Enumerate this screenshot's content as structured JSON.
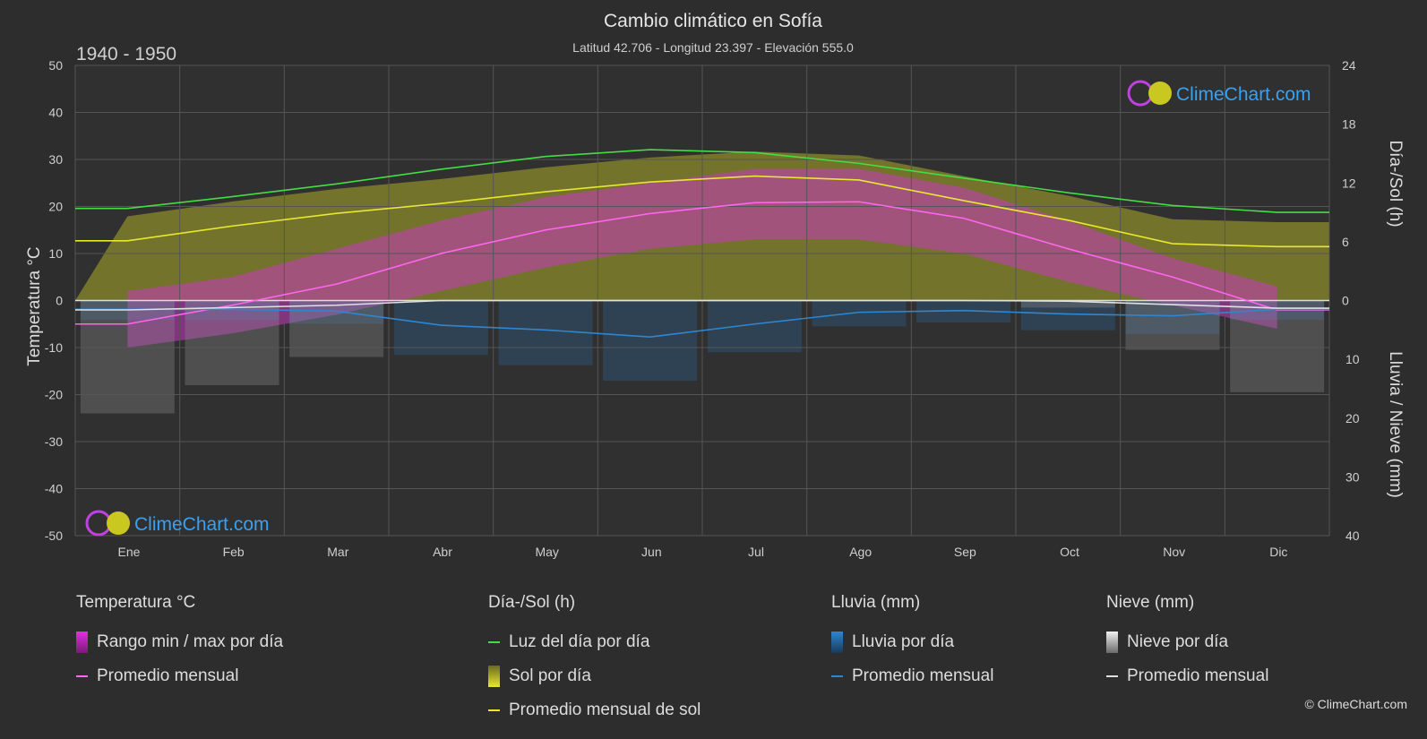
{
  "header": {
    "title": "Cambio climático en Sofía",
    "subtitle": "Latitud 42.706 - Longitud 23.397 - Elevación 555.0",
    "period": "1940 - 1950"
  },
  "axes": {
    "left_label": "Temperatura °C",
    "right_top_label": "Día-/Sol (h)",
    "right_bottom_label": "Lluvia / Nieve (mm)"
  },
  "brand": {
    "name": "ClimeChart.com",
    "copyright": "© ClimeChart.com"
  },
  "colors": {
    "background": "#2d2d2d",
    "daylight": "#44dd44",
    "sunshine_avg": "#e8e830",
    "sunshine_fill": "#8a8a2a",
    "temp_avg": "#ff66ee",
    "temp_range": "#c838c0",
    "rain": "#2e86d0",
    "snow": "#e0e0e0",
    "brand_text": "#3aa0f0"
  },
  "legend": {
    "temperature": {
      "title": "Temperatura °C",
      "range": "Rango min / max por día",
      "avg": "Promedio mensual"
    },
    "daylight": {
      "title": "Día-/Sol (h)",
      "daylight": "Luz del día por día",
      "sunshine": "Sol por día",
      "sunshine_avg": "Promedio mensual de sol"
    },
    "rain": {
      "title": "Lluvia (mm)",
      "rain_day": "Lluvia por día",
      "avg": "Promedio mensual"
    },
    "snow": {
      "title": "Nieve (mm)",
      "snow_day": "Nieve por día",
      "avg": "Promedio mensual"
    }
  },
  "chart_data": {
    "type": "line",
    "categories": [
      "Ene",
      "Feb",
      "Mar",
      "Abr",
      "May",
      "Jun",
      "Jul",
      "Ago",
      "Sep",
      "Oct",
      "Nov",
      "Dic"
    ],
    "y_left": {
      "min": -50,
      "max": 50,
      "ticks": [
        50,
        40,
        30,
        20,
        10,
        0,
        -10,
        -20,
        -30,
        -40,
        -50
      ]
    },
    "y_right_top": {
      "min": 0,
      "max": 24,
      "ticks": [
        24,
        18,
        12,
        6,
        0
      ]
    },
    "y_right_bottom": {
      "min": 0,
      "max": 40,
      "ticks": [
        0,
        10,
        20,
        30,
        40
      ]
    },
    "grid": true,
    "series": [
      {
        "name": "Luz del día por día",
        "axis": "hours",
        "values": [
          9.4,
          10.6,
          11.9,
          13.4,
          14.7,
          15.4,
          15.1,
          14.0,
          12.5,
          11.0,
          9.7,
          9.0
        ]
      },
      {
        "name": "Promedio mensual de sol",
        "axis": "hours",
        "values": [
          6.1,
          7.6,
          8.9,
          9.9,
          11.1,
          12.1,
          12.7,
          12.3,
          10.2,
          8.2,
          5.8,
          5.5
        ]
      },
      {
        "name": "Promedio mensual",
        "kind": "temperature",
        "axis": "temp",
        "values": [
          -5.0,
          -1.0,
          3.5,
          10.0,
          15.0,
          18.5,
          20.8,
          21.0,
          17.5,
          11.0,
          5.0,
          -2.0
        ]
      },
      {
        "name": "Promedio mensual",
        "kind": "rain",
        "axis": "precip",
        "values": [
          1.5,
          1.5,
          1.8,
          4.2,
          5.0,
          6.2,
          4.0,
          2.0,
          1.7,
          2.3,
          2.6,
          1.5
        ]
      },
      {
        "name": "Promedio mensual",
        "kind": "snow",
        "axis": "precip",
        "values": [
          1.6,
          1.2,
          0.8,
          0.0,
          0.0,
          0.0,
          0.0,
          0.0,
          0.0,
          0.1,
          0.7,
          1.3
        ]
      }
    ],
    "temp_range": {
      "min": [
        -10,
        -7,
        -3,
        2,
        7,
        11,
        13,
        13,
        10,
        4,
        -1,
        -6
      ],
      "max": [
        2,
        5,
        11,
        17,
        22,
        25,
        28,
        28,
        24,
        17,
        9,
        3
      ]
    }
  }
}
